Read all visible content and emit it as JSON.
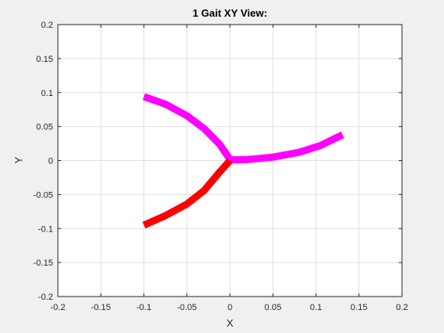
{
  "chart_data": {
    "type": "line",
    "title": "1 Gait XY View:",
    "xlabel": "X",
    "ylabel": "Y",
    "xlim": [
      -0.2,
      0.2
    ],
    "ylim": [
      -0.2,
      0.2
    ],
    "grid": true,
    "xticks": [
      -0.2,
      -0.15,
      -0.1,
      -0.05,
      0,
      0.05,
      0.1,
      0.15,
      0.2
    ],
    "yticks": [
      -0.2,
      -0.15,
      -0.1,
      -0.05,
      0,
      0.05,
      0.1,
      0.15,
      0.2
    ],
    "xtick_labels": [
      "-0.2",
      "-0.15",
      "-0.1",
      "-0.05",
      "0",
      "0.05",
      "0.1",
      "0.15",
      "0.2"
    ],
    "ytick_labels": [
      "-0.2",
      "-0.15",
      "-0.1",
      "-0.05",
      "0",
      "0.05",
      "0.1",
      "0.15",
      "0.2"
    ],
    "series": [
      {
        "color": "#ff00ff",
        "x": [
          -0.1,
          -0.075,
          -0.05,
          -0.03,
          -0.012,
          0
        ],
        "y": [
          0.094,
          0.083,
          0.066,
          0.047,
          0.024,
          0.002
        ]
      },
      {
        "color": "#ff00ff",
        "x": [
          0,
          0.02,
          0.05,
          0.08,
          0.105,
          0.131
        ],
        "y": [
          0.001,
          0.0015,
          0.005,
          0.012,
          0.022,
          0.038
        ]
      },
      {
        "color": "#ff0000",
        "x": [
          0,
          -0.012,
          -0.03,
          -0.05,
          -0.075,
          -0.1
        ],
        "y": [
          0,
          -0.017,
          -0.044,
          -0.064,
          -0.081,
          -0.095
        ]
      }
    ]
  }
}
